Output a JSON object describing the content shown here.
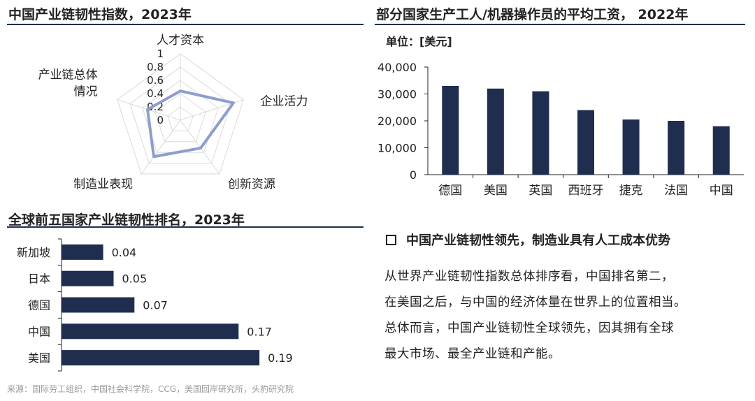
{
  "panels": {
    "radar_title": "中国产业链韧性指数，2023年",
    "wage_title": "部分国家生产工人/机器操作员的平均工资，  2022年",
    "wage_unit": "单位：[美元]",
    "rank_title": "全球前五国家产业链韧性排名，2023年"
  },
  "text_block": {
    "heading": "中国产业链韧性领先，制造业具有人工成本优势",
    "lines": [
      "从世界产业链韧性指数总体排序看，中国排名第二，",
      "在美国之后，与中国的经济体量在世界上的位置相当。",
      "总体而言，中国产业链韧性全球领先，因其拥有全球",
      "最大市场、最全产业链和产能。"
    ]
  },
  "source": "来源：国际劳工组织，中国社会科学院，CCG，美国回岸研究所，头豹研究院",
  "colors": {
    "navy": "#1f2e4f",
    "radar_series": "#8e9dcc",
    "grid": "#d9d9d9"
  },
  "chart_data": [
    {
      "type": "radar",
      "title": "中国产业链韧性指数，2023年",
      "axes": [
        "人才资本",
        "企业活力",
        "创新资源",
        "制造业表现",
        "产业链总体情况"
      ],
      "axis_label_lines": [
        [
          "人才资本"
        ],
        [
          "企业活力"
        ],
        [
          "创新资源"
        ],
        [
          "制造业表现"
        ],
        [
          "产业链总体",
          "情况"
        ]
      ],
      "ticks": [
        "0",
        "0.2",
        "0.4",
        "0.6",
        "0.8",
        "1"
      ],
      "rmax": 1,
      "values": [
        0.44,
        0.84,
        0.52,
        0.68,
        0.52
      ]
    },
    {
      "type": "bar",
      "title": "部分国家生产工人/机器操作员的平均工资，  2022年",
      "ylabel": "单位：[美元]",
      "categories": [
        "德国",
        "美国",
        "英国",
        "西班牙",
        "捷克",
        "法国",
        "中国"
      ],
      "values": [
        33000,
        32000,
        31000,
        24000,
        20500,
        20000,
        18000
      ],
      "ylim": [
        0,
        40000
      ],
      "yticks": [
        "0",
        "10,000",
        "20,000",
        "30,000",
        "40,000"
      ],
      "ytick_values": [
        0,
        10000,
        20000,
        30000,
        40000
      ]
    },
    {
      "type": "bar",
      "orientation": "horizontal",
      "title": "全球前五国家产业链韧性排名，2023年",
      "categories": [
        "新加坡",
        "日本",
        "德国",
        "中国",
        "美国"
      ],
      "values": [
        0.04,
        0.05,
        0.07,
        0.17,
        0.19
      ],
      "value_labels": [
        "0.04",
        "0.05",
        "0.07",
        "0.17",
        "0.19"
      ],
      "xlim": [
        0,
        0.2
      ]
    }
  ]
}
